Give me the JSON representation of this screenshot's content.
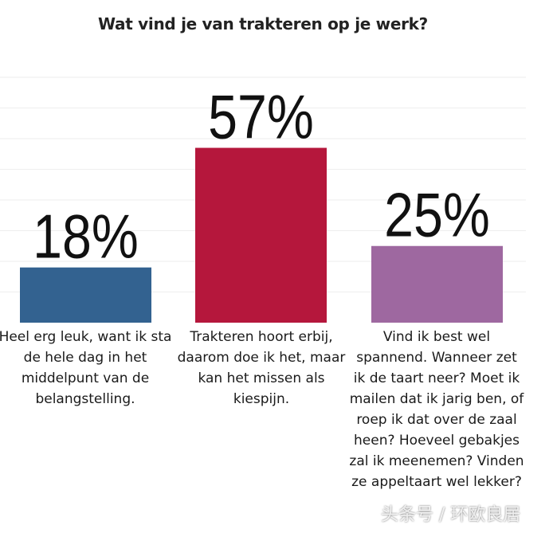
{
  "chart_data": {
    "type": "bar",
    "title": "Wat vind je van trakteren op je werk?",
    "categories": [
      "Heel erg leuk, want ik sta de hele dag in het middelpunt van de belangstelling.",
      "Trakteren hoort erbij, daarom doe ik het, maar kan het missen als kiespijn.",
      "Vind ik best wel spannend. Wanneer zet ik de taart neer? Moet ik mailen dat ik jarig ben, of roep ik dat over de zaal heen? Hoeveel gebakjes zal ik meenemen? Vinden ze appeltaart wel lekker?"
    ],
    "values": [
      18,
      57,
      25
    ],
    "data_labels": [
      "18%",
      "57%",
      "25%"
    ],
    "colors": [
      "#336290",
      "#b5173c",
      "#9e68a0"
    ],
    "ylim": [
      0,
      80
    ],
    "grid": true,
    "unit": "%"
  },
  "watermark": "头条号 / 环欧良居"
}
